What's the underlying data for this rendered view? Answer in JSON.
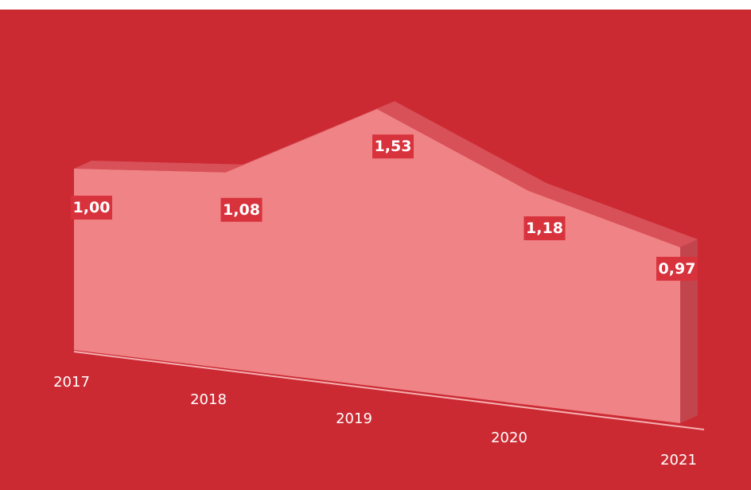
{
  "colors": {
    "background": "#cc2a33",
    "area_front": "#ef8386",
    "area_top": "#d85058",
    "area_side": "#c2454d",
    "label_bg": "#d8323c",
    "text": "#ffffff"
  },
  "chart_data": {
    "type": "area",
    "three_d": true,
    "categories": [
      "2017",
      "2018",
      "2019",
      "2020",
      "2021"
    ],
    "series": [
      {
        "values": [
          1.0,
          1.08,
          1.53,
          1.18,
          0.97
        ],
        "labels": [
          "1,00",
          "1,08",
          "1,53",
          "1,18",
          "0,97"
        ]
      }
    ],
    "ylim": [
      0,
      1.6
    ],
    "grid": false,
    "legend": "none"
  }
}
